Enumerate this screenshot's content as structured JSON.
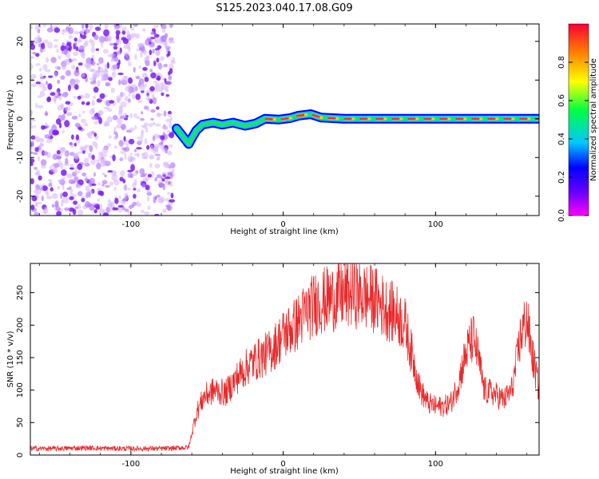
{
  "figure_title": "S125.2023.040.17.08.G09",
  "chart_data": [
    {
      "type": "heatmap",
      "xlabel": "Height of straight line (km)",
      "ylabel": "Frequency (Hz)",
      "xlim": [
        -166,
        168
      ],
      "ylim": [
        -25,
        24.5
      ],
      "xticks": [
        -100,
        0,
        100
      ],
      "yticks": [
        -20,
        -10,
        0,
        10,
        20
      ],
      "noise_region": {
        "x_start": -166,
        "x_end": -72,
        "description_free": true
      },
      "signal_track": [
        [
          -70,
          -2.5
        ],
        [
          -66,
          -4.5
        ],
        [
          -62,
          -6.5
        ],
        [
          -60,
          -5
        ],
        [
          -57,
          -3
        ],
        [
          -53,
          -1.5
        ],
        [
          -46,
          -1
        ],
        [
          -40,
          -1.5
        ],
        [
          -33,
          -1
        ],
        [
          -25,
          -1.8
        ],
        [
          -18,
          -1.2
        ],
        [
          -12,
          0
        ],
        [
          -3,
          -0.2
        ],
        [
          5,
          0.2
        ],
        [
          10,
          0.8
        ],
        [
          18,
          1.2
        ],
        [
          25,
          0.3
        ],
        [
          40,
          0
        ],
        [
          100,
          0
        ],
        [
          168,
          0
        ]
      ],
      "colorbar": {
        "label": "Normalized spectral amplitude",
        "range": [
          0,
          1
        ],
        "ticks": [
          "0.0",
          "0.2",
          "0.4",
          "0.6",
          "0.8"
        ],
        "colors": [
          "#ff00ff",
          "#6a00ff",
          "#0000ff",
          "#00c8ff",
          "#00ff40",
          "#ffff00",
          "#ff8000",
          "#ff0033"
        ]
      }
    },
    {
      "type": "line",
      "xlabel": "Height of straight line (km)",
      "ylabel": "SNR (10 * v/v)",
      "xlim": [
        -166,
        168
      ],
      "ylim": [
        0,
        295
      ],
      "xticks": [
        -100,
        0,
        100
      ],
      "yticks": [
        0,
        50,
        100,
        150,
        200,
        250
      ],
      "color": "#e8292a",
      "series": [
        {
          "x": [
            -166,
            -150,
            -130,
            -110,
            -90,
            -75,
            -62,
            -57,
            -52,
            -45,
            -38,
            -30,
            -22,
            -15,
            -8,
            0,
            8,
            15,
            22,
            30,
            38,
            45,
            52,
            60,
            68,
            75,
            80,
            85,
            90,
            95,
            100,
            105,
            110,
            115,
            118,
            122,
            125,
            128,
            132,
            138,
            145,
            150,
            153,
            156,
            160,
            163,
            168
          ],
          "y": [
            10,
            10,
            11,
            10,
            10,
            10,
            12,
            65,
            90,
            100,
            95,
            120,
            140,
            150,
            160,
            185,
            200,
            220,
            235,
            240,
            245,
            250,
            245,
            240,
            225,
            215,
            200,
            150,
            100,
            80,
            75,
            75,
            80,
            110,
            140,
            170,
            180,
            150,
            100,
            95,
            85,
            100,
            140,
            185,
            210,
            160,
            100
          ]
        }
      ]
    }
  ]
}
